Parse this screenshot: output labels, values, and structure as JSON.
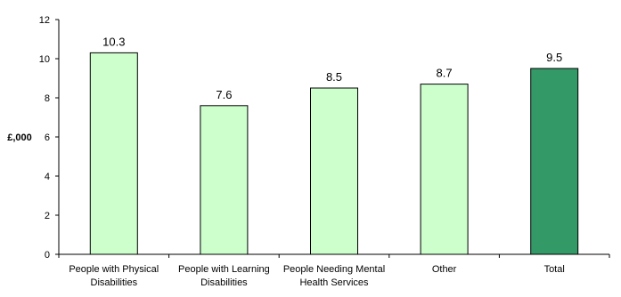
{
  "chart_data": {
    "type": "bar",
    "title": "",
    "xlabel": "",
    "ylabel": "£,000",
    "ylim": [
      0,
      12
    ],
    "yticks": [
      0,
      2,
      4,
      6,
      8,
      10,
      12
    ],
    "grid": false,
    "legend": "none",
    "categories": [
      [
        "People with Physical",
        "Disabilities"
      ],
      [
        "People with Learning",
        "Disabilities"
      ],
      [
        "People Needing Mental",
        "Health Services"
      ],
      [
        "Other"
      ],
      [
        "Total"
      ]
    ],
    "values": [
      10.3,
      7.6,
      8.5,
      8.7,
      9.5
    ],
    "value_labels": [
      "10.3",
      "7.6",
      "8.5",
      "8.7",
      "9.5"
    ],
    "colors": [
      "#ccffcc",
      "#ccffcc",
      "#ccffcc",
      "#ccffcc",
      "#339966"
    ],
    "bar_border_color": "#000000"
  }
}
